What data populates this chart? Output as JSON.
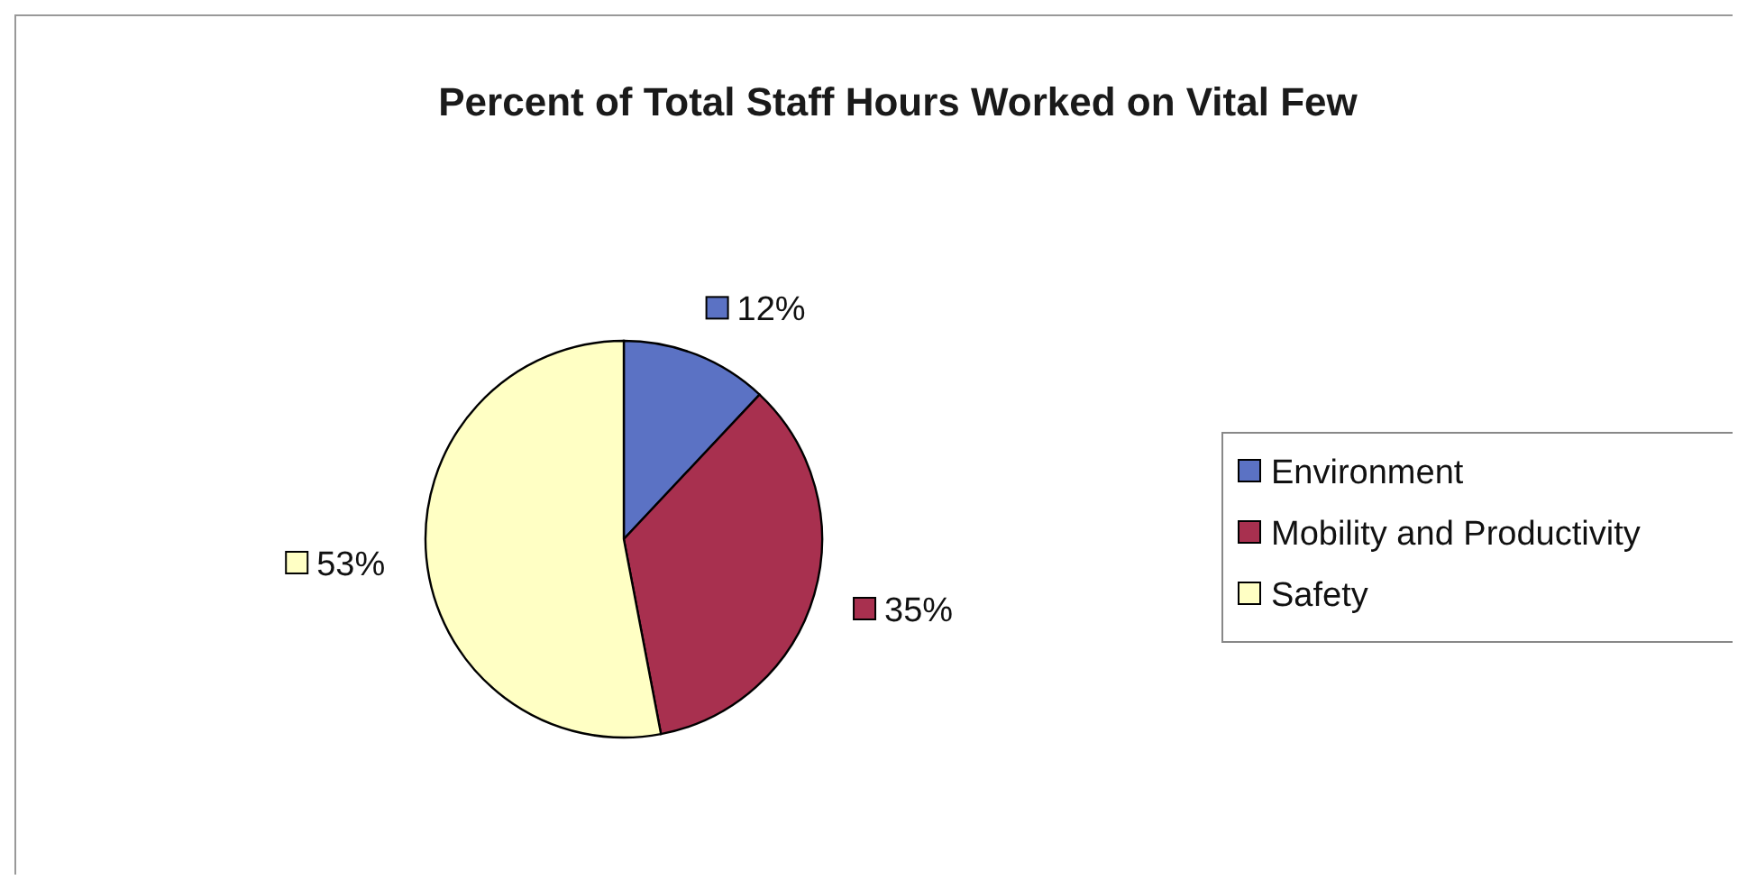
{
  "chart_data": {
    "type": "pie",
    "title": "Percent of Total Staff Hours Worked on Vital Few",
    "categories": [
      "Environment",
      "Mobility and Productivity",
      "Safety"
    ],
    "values": [
      12,
      35,
      53
    ],
    "colors": [
      "#5b72c4",
      "#a8304f",
      "#ffffc4"
    ],
    "value_labels": [
      "12%",
      "35%",
      "53%"
    ],
    "legend": "right"
  }
}
